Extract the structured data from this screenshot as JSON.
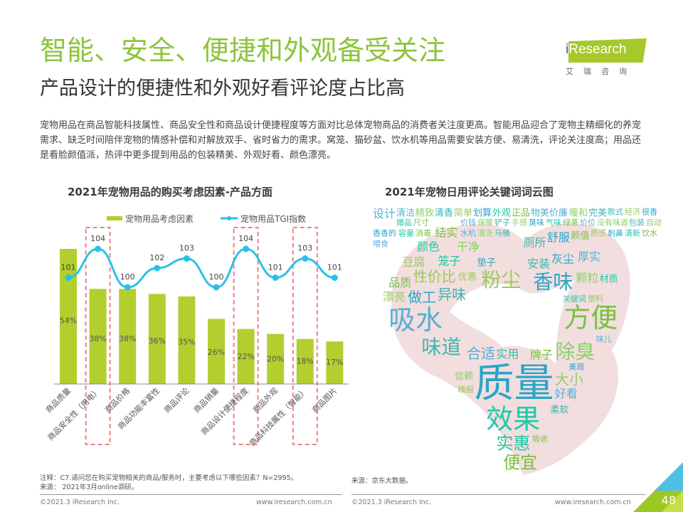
{
  "header": {
    "title": "智能、安全、便捷和外观备受关注",
    "subtitle": "产品设计的便捷性和外观好看评论度占比高",
    "logo_brand_i": "i",
    "logo_brand": "Research",
    "logo_cn": "艾瑞咨询"
  },
  "paragraph": "宠物用品在商品智能科技属性、商品安全性和商品设计便捷程度等方面对比总体宠物商品的消费者关注度更高。智能用品迎合了宠物主精细化的养宠需求、缺乏时间陪伴宠物的情感补偿和对解放双手、省时省力的需求。窝笼、猫砂盆、饮水机等用品需要安装方便、易清洗，评论关注度高；用品还是看脸颜值派，热评中更多提到用品的包装精美、外观好看、颜色漂亮。",
  "chart_data": [
    {
      "type": "bar",
      "title": "2021年宠物用品的购买考虑因素-产品方面",
      "categories": [
        "商品质量",
        "商品安全性（用电）",
        "商品价格",
        "商品功能丰富性",
        "商品评论",
        "商品销量",
        "商品设计便捷程度",
        "商品外观",
        "商品科技属性（智能）",
        "商品图片"
      ],
      "series": [
        {
          "name": "宠物用品考虑因素",
          "kind": "bar",
          "unit": "%",
          "values": [
            54,
            38,
            38,
            36,
            35,
            26,
            22,
            20,
            18,
            17
          ],
          "labels": [
            "54%",
            "38%",
            "38%",
            "36%",
            "35%",
            "26%",
            "22%",
            "20%",
            "18%",
            "17%"
          ]
        },
        {
          "name": "宠物用品TGI指数",
          "kind": "line",
          "values": [
            101,
            104,
            100,
            102,
            103,
            100,
            104,
            101,
            103,
            101
          ]
        }
      ],
      "highlighted_categories": [
        "商品安全性（用电）",
        "商品设计便捷程度",
        "商品科技属性（智能）"
      ],
      "legend_position": "top",
      "colors": {
        "bar": "#b3cf2f",
        "line": "#29c0ea",
        "highlight": "#f08080"
      }
    },
    {
      "type": "wordcloud",
      "title": "2021年宠物日用评论关键词词云图",
      "words": [
        {
          "text": "质量",
          "weight": 10
        },
        {
          "text": "效果",
          "weight": 8
        },
        {
          "text": "方便",
          "weight": 8
        },
        {
          "text": "吸水",
          "weight": 8
        },
        {
          "text": "除臭",
          "weight": 6
        },
        {
          "text": "味道",
          "weight": 6
        },
        {
          "text": "粉尘",
          "weight": 6
        },
        {
          "text": "香味",
          "weight": 6
        },
        {
          "text": "实惠",
          "weight": 5
        },
        {
          "text": "便宜",
          "weight": 5
        },
        {
          "text": "合适",
          "weight": 4
        },
        {
          "text": "大小",
          "weight": 4
        },
        {
          "text": "异味",
          "weight": 4
        },
        {
          "text": "性价比",
          "weight": 4
        },
        {
          "text": "做工",
          "weight": 4
        },
        {
          "text": "实用",
          "weight": 3
        },
        {
          "text": "牌子",
          "weight": 3
        },
        {
          "text": "好看",
          "weight": 3
        },
        {
          "text": "颗粒",
          "weight": 3
        },
        {
          "text": "安装",
          "weight": 3
        },
        {
          "text": "漂亮",
          "weight": 3
        },
        {
          "text": "灰尘",
          "weight": 3
        },
        {
          "text": "笼子",
          "weight": 3
        },
        {
          "text": "品质",
          "weight": 3
        },
        {
          "text": "厚实",
          "weight": 3
        },
        {
          "text": "干净",
          "weight": 3
        },
        {
          "text": "厕所",
          "weight": 3
        },
        {
          "text": "豆腐",
          "weight": 3
        },
        {
          "text": "舒服",
          "weight": 3
        },
        {
          "text": "颜色",
          "weight": 3
        },
        {
          "text": "结实",
          "weight": 3
        },
        {
          "text": "设计",
          "weight": 3
        },
        {
          "text": "信赖",
          "weight": 2
        },
        {
          "text": "柔软",
          "weight": 2
        },
        {
          "text": "优惠",
          "weight": 2
        },
        {
          "text": "垫子",
          "weight": 2
        },
        {
          "text": "材质",
          "weight": 2
        },
        {
          "text": "颜值",
          "weight": 2
        },
        {
          "text": "清洁",
          "weight": 2
        },
        {
          "text": "精致",
          "weight": 2
        },
        {
          "text": "清香",
          "weight": 2
        },
        {
          "text": "简单",
          "weight": 2
        },
        {
          "text": "划算",
          "weight": 2
        },
        {
          "text": "外观",
          "weight": 2
        },
        {
          "text": "正品",
          "weight": 2
        },
        {
          "text": "物美价廉",
          "weight": 2
        },
        {
          "text": "暖和",
          "weight": 2
        },
        {
          "text": "完美",
          "weight": 2
        },
        {
          "text": "精细",
          "weight": 1
        },
        {
          "text": "美观",
          "weight": 1
        },
        {
          "text": "关键词",
          "weight": 1
        },
        {
          "text": "吸收",
          "weight": 1
        },
        {
          "text": "味儿",
          "weight": 1
        },
        {
          "text": "塑料",
          "weight": 1
        },
        {
          "text": "款式",
          "weight": 1
        },
        {
          "text": "经济",
          "weight": 1
        },
        {
          "text": "很香",
          "weight": 1
        },
        {
          "text": "赠品",
          "weight": 1
        },
        {
          "text": "尺寸",
          "weight": 1
        },
        {
          "text": "价钱",
          "weight": 1
        },
        {
          "text": "保暖",
          "weight": 1
        },
        {
          "text": "铲子",
          "weight": 1
        },
        {
          "text": "手感",
          "weight": 1
        },
        {
          "text": "臭味",
          "weight": 1
        },
        {
          "text": "气味",
          "weight": 1
        },
        {
          "text": "绿茶",
          "weight": 1
        },
        {
          "text": "价位",
          "weight": 1
        },
        {
          "text": "没有味道",
          "weight": 1
        },
        {
          "text": "包装",
          "weight": 1
        },
        {
          "text": "自动",
          "weight": 1
        },
        {
          "text": "香香的",
          "weight": 1
        },
        {
          "text": "容量",
          "weight": 1
        },
        {
          "text": "消毒",
          "weight": 1
        },
        {
          "text": "水机",
          "weight": 1
        },
        {
          "text": "清洗",
          "weight": 1
        },
        {
          "text": "马桶",
          "weight": 1
        },
        {
          "text": "质感",
          "weight": 1
        },
        {
          "text": "刺鼻",
          "weight": 1
        },
        {
          "text": "清新",
          "weight": 1
        },
        {
          "text": "饮水",
          "weight": 1
        },
        {
          "text": "喂食",
          "weight": 1
        }
      ]
    }
  ],
  "footer": {
    "note_left": "注释：C7.请问您在购买宠物相关的商品/服务时，主要考虑以下哪些因素？N=2995。",
    "source_left": "来源： 2021年3月online调研。",
    "source_right": "来源：京东大数据。",
    "copyright_left": "©2021.3 iResearch Inc.",
    "url_left": "www.iresearch.com.cn",
    "copyright_right": "©2021.3 iResearch Inc.",
    "url_right": "www.iresearch.com.cn",
    "page_number": "48"
  }
}
